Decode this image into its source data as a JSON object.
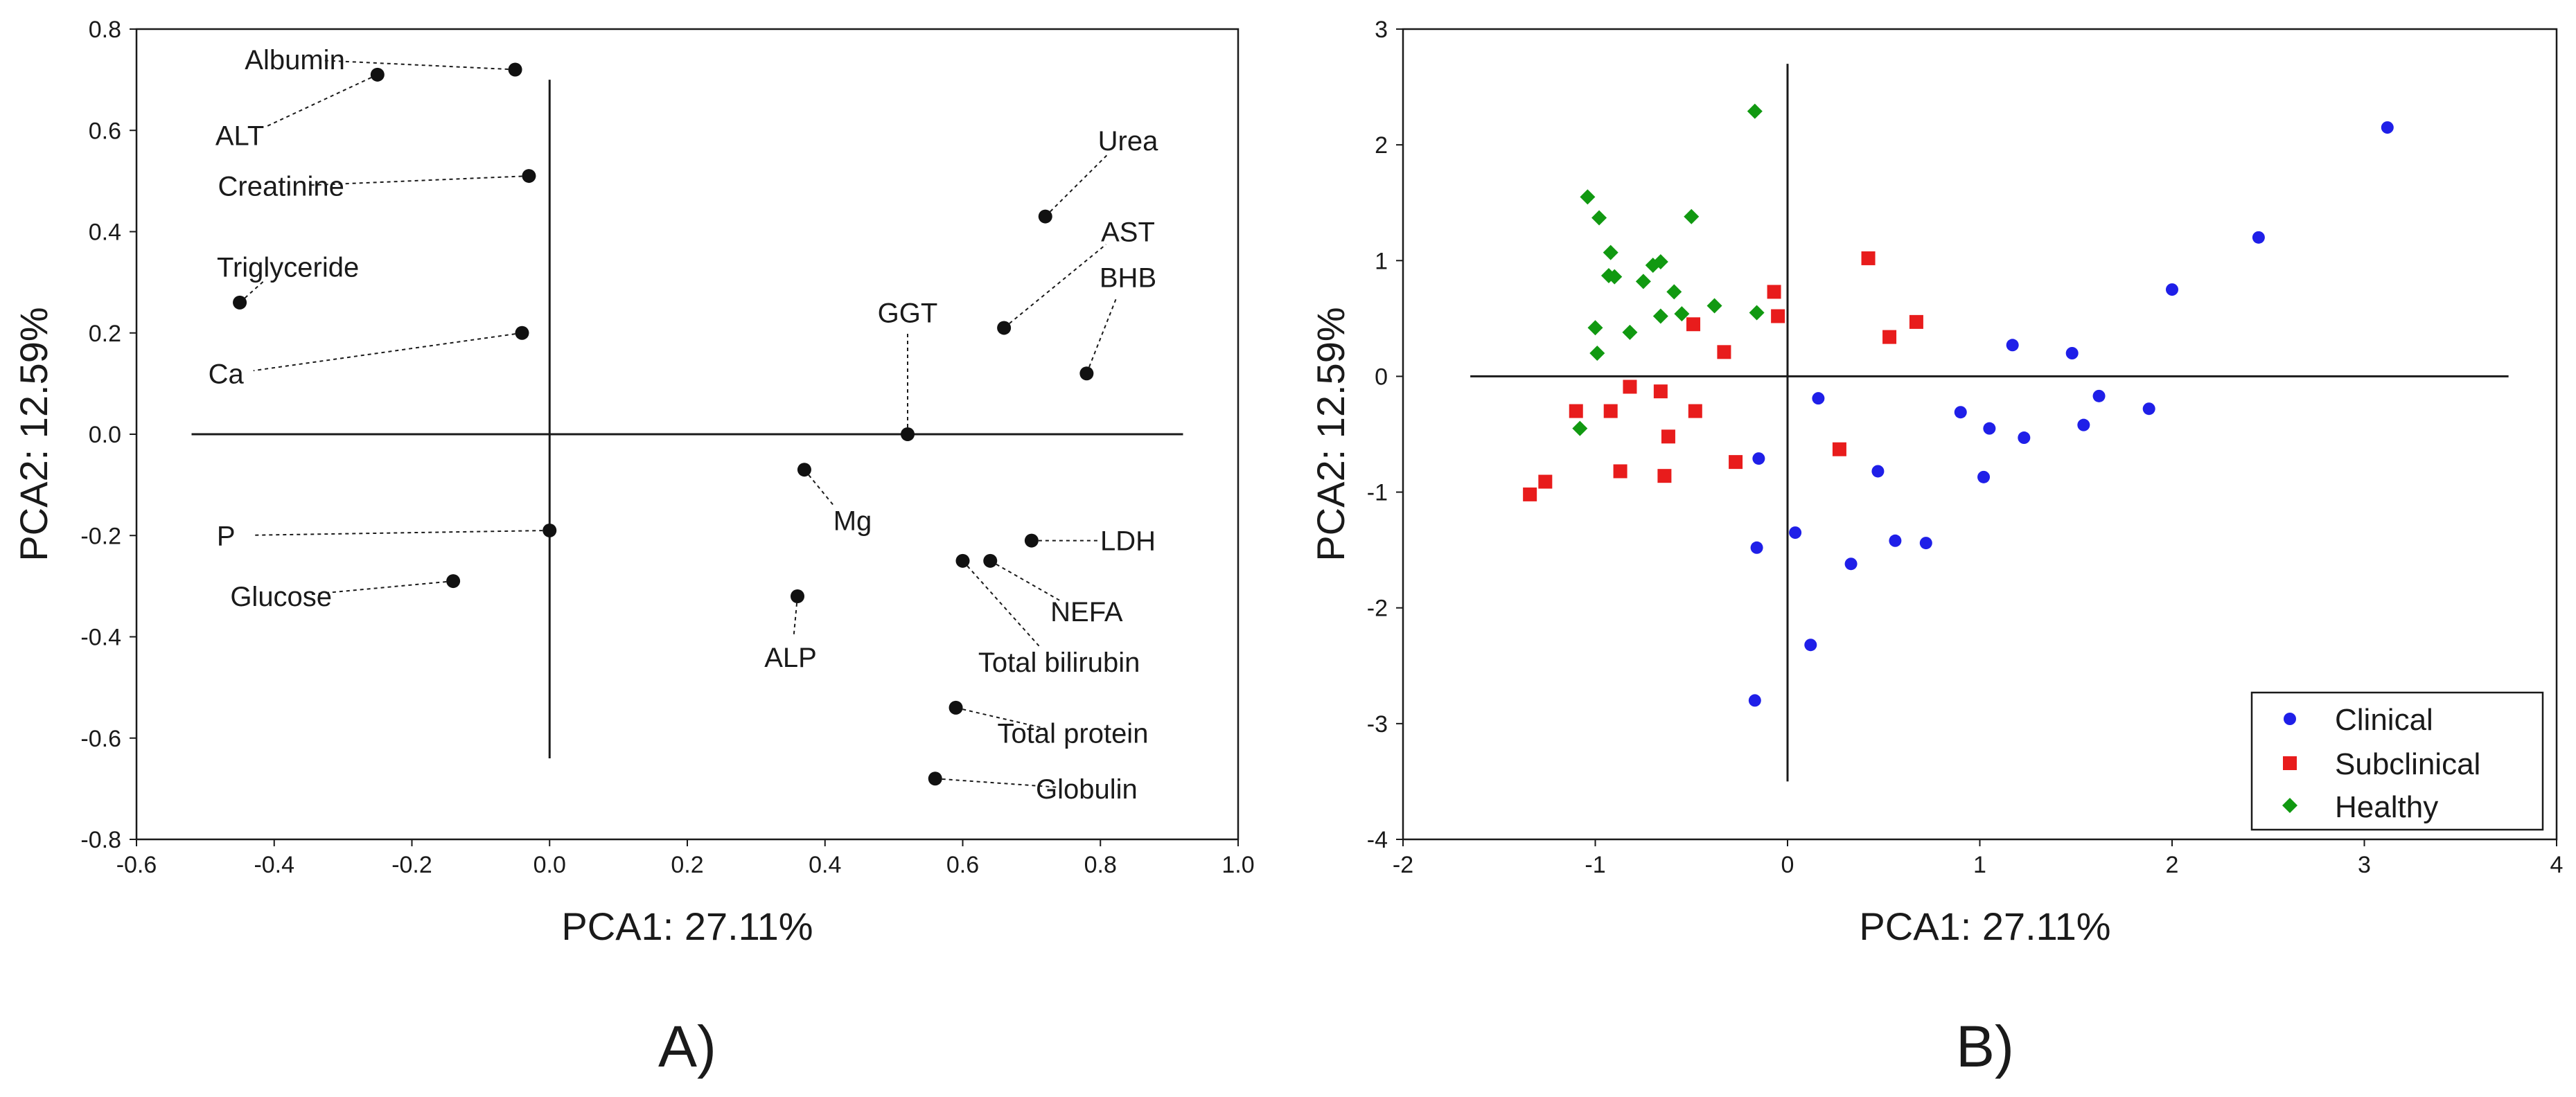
{
  "chart_data": [
    {
      "panel": "A)",
      "type": "scatter",
      "subtype": "loading-plot",
      "xlabel": "PCA1: 27.11%",
      "ylabel": "PCA2: 12.59%",
      "xlim": [
        -0.6,
        1.0
      ],
      "ylim": [
        -0.8,
        0.8
      ],
      "xticks": [
        "-0.6",
        "-0.4",
        "-0.2",
        "0.0",
        "0.2",
        "0.4",
        "0.6",
        "0.8",
        "1.0"
      ],
      "yticks": [
        "0.8",
        "0.6",
        "0.4",
        "0.2",
        "0.0",
        "-0.2",
        "-0.4",
        "-0.6",
        "-0.8"
      ],
      "axis_lines": {
        "x_from": -0.52,
        "x_to": 0.92,
        "y_from": -0.64,
        "y_to": 0.7
      },
      "points": [
        {
          "name": "Albumin",
          "x": -0.05,
          "y": 0.72,
          "lx": -0.37,
          "ly": 0.74
        },
        {
          "name": "ALT",
          "x": -0.25,
          "y": 0.71,
          "lx": -0.45,
          "ly": 0.59
        },
        {
          "name": "Creatinine",
          "x": -0.03,
          "y": 0.51,
          "lx": -0.39,
          "ly": 0.49
        },
        {
          "name": "Triglyceride",
          "x": -0.45,
          "y": 0.26,
          "lx": -0.38,
          "ly": 0.33
        },
        {
          "name": "Ca",
          "x": -0.04,
          "y": 0.2,
          "lx": -0.47,
          "ly": 0.12
        },
        {
          "name": "Urea",
          "x": 0.72,
          "y": 0.43,
          "lx": 0.84,
          "ly": 0.58
        },
        {
          "name": "AST",
          "x": 0.66,
          "y": 0.21,
          "lx": 0.84,
          "ly": 0.4
        },
        {
          "name": "BHB",
          "x": 0.78,
          "y": 0.12,
          "lx": 0.84,
          "ly": 0.31
        },
        {
          "name": "GGT",
          "x": 0.52,
          "y": 0.0,
          "lx": 0.52,
          "ly": 0.24
        },
        {
          "name": "Mg",
          "x": 0.37,
          "y": -0.07,
          "lx": 0.44,
          "ly": -0.17
        },
        {
          "name": "P",
          "x": 0.0,
          "y": -0.19,
          "lx": -0.47,
          "ly": -0.2
        },
        {
          "name": "Glucose",
          "x": -0.14,
          "y": -0.29,
          "lx": -0.39,
          "ly": -0.32
        },
        {
          "name": "LDH",
          "x": 0.7,
          "y": -0.21,
          "lx": 0.84,
          "ly": -0.21
        },
        {
          "name": "NEFA",
          "x": 0.64,
          "y": -0.25,
          "lx": 0.78,
          "ly": -0.35
        },
        {
          "name": "Total bilirubin",
          "x": 0.6,
          "y": -0.25,
          "lx": 0.74,
          "ly": -0.45
        },
        {
          "name": "ALP",
          "x": 0.36,
          "y": -0.32,
          "lx": 0.35,
          "ly": -0.44
        },
        {
          "name": "Total protein",
          "x": 0.59,
          "y": -0.54,
          "lx": 0.76,
          "ly": -0.59
        },
        {
          "name": "Globulin",
          "x": 0.56,
          "y": -0.68,
          "lx": 0.78,
          "ly": -0.7
        }
      ]
    },
    {
      "panel": "B)",
      "type": "scatter",
      "subtype": "score-plot",
      "xlabel": "PCA1: 27.11%",
      "ylabel": "PCA2: 12.59%",
      "xlim": [
        -2,
        4
      ],
      "ylim": [
        -4,
        3
      ],
      "xticks": [
        "-2",
        "-1",
        "0",
        "1",
        "2",
        "3",
        "4"
      ],
      "yticks": [
        "3",
        "2",
        "1",
        "0",
        "-1",
        "-2",
        "-3",
        "-4"
      ],
      "axis_lines": {
        "x_from": -1.65,
        "x_to": 3.75,
        "y_from": -3.5,
        "y_to": 2.7
      },
      "legend_position": "bottom-right",
      "series": [
        {
          "name": "Clinical",
          "marker": "circle",
          "color": "#1f1fe8",
          "points": [
            [
              3.12,
              2.15
            ],
            [
              2.45,
              1.2
            ],
            [
              2.0,
              0.75
            ],
            [
              1.17,
              0.27
            ],
            [
              1.48,
              0.2
            ],
            [
              1.62,
              -0.17
            ],
            [
              1.88,
              -0.28
            ],
            [
              0.9,
              -0.31
            ],
            [
              1.05,
              -0.45
            ],
            [
              1.23,
              -0.53
            ],
            [
              1.54,
              -0.42
            ],
            [
              0.16,
              -0.19
            ],
            [
              -0.15,
              -0.71
            ],
            [
              0.47,
              -0.82
            ],
            [
              1.02,
              -0.87
            ],
            [
              0.04,
              -1.35
            ],
            [
              0.56,
              -1.42
            ],
            [
              0.72,
              -1.44
            ],
            [
              -0.16,
              -1.48
            ],
            [
              0.33,
              -1.62
            ],
            [
              0.12,
              -2.32
            ],
            [
              -0.17,
              -2.8
            ]
          ]
        },
        {
          "name": "Subclinical",
          "marker": "square",
          "color": "#e81c1c",
          "points": [
            [
              0.42,
              1.02
            ],
            [
              -0.07,
              0.73
            ],
            [
              -0.05,
              0.52
            ],
            [
              0.67,
              0.47
            ],
            [
              0.53,
              0.34
            ],
            [
              -0.49,
              0.45
            ],
            [
              -0.33,
              0.21
            ],
            [
              -1.1,
              -0.3
            ],
            [
              -0.82,
              -0.09
            ],
            [
              -0.66,
              -0.13
            ],
            [
              -0.92,
              -0.3
            ],
            [
              -0.48,
              -0.3
            ],
            [
              -0.62,
              -0.52
            ],
            [
              0.27,
              -0.63
            ],
            [
              -0.27,
              -0.74
            ],
            [
              -0.87,
              -0.82
            ],
            [
              -0.64,
              -0.86
            ],
            [
              -1.26,
              -0.91
            ],
            [
              -1.34,
              -1.02
            ]
          ]
        },
        {
          "name": "Healthy",
          "marker": "diamond",
          "color": "#119911",
          "points": [
            [
              -0.17,
              2.29
            ],
            [
              -1.04,
              1.55
            ],
            [
              -0.98,
              1.37
            ],
            [
              -0.5,
              1.38
            ],
            [
              -0.92,
              1.07
            ],
            [
              -0.66,
              0.99
            ],
            [
              -0.7,
              0.96
            ],
            [
              -0.93,
              0.87
            ],
            [
              -0.9,
              0.86
            ],
            [
              -0.75,
              0.82
            ],
            [
              -0.59,
              0.73
            ],
            [
              -0.38,
              0.61
            ],
            [
              -0.66,
              0.52
            ],
            [
              -0.55,
              0.54
            ],
            [
              -0.16,
              0.55
            ],
            [
              -1.0,
              0.42
            ],
            [
              -0.82,
              0.38
            ],
            [
              -0.99,
              0.2
            ],
            [
              -1.08,
              -0.45
            ]
          ]
        }
      ]
    }
  ]
}
